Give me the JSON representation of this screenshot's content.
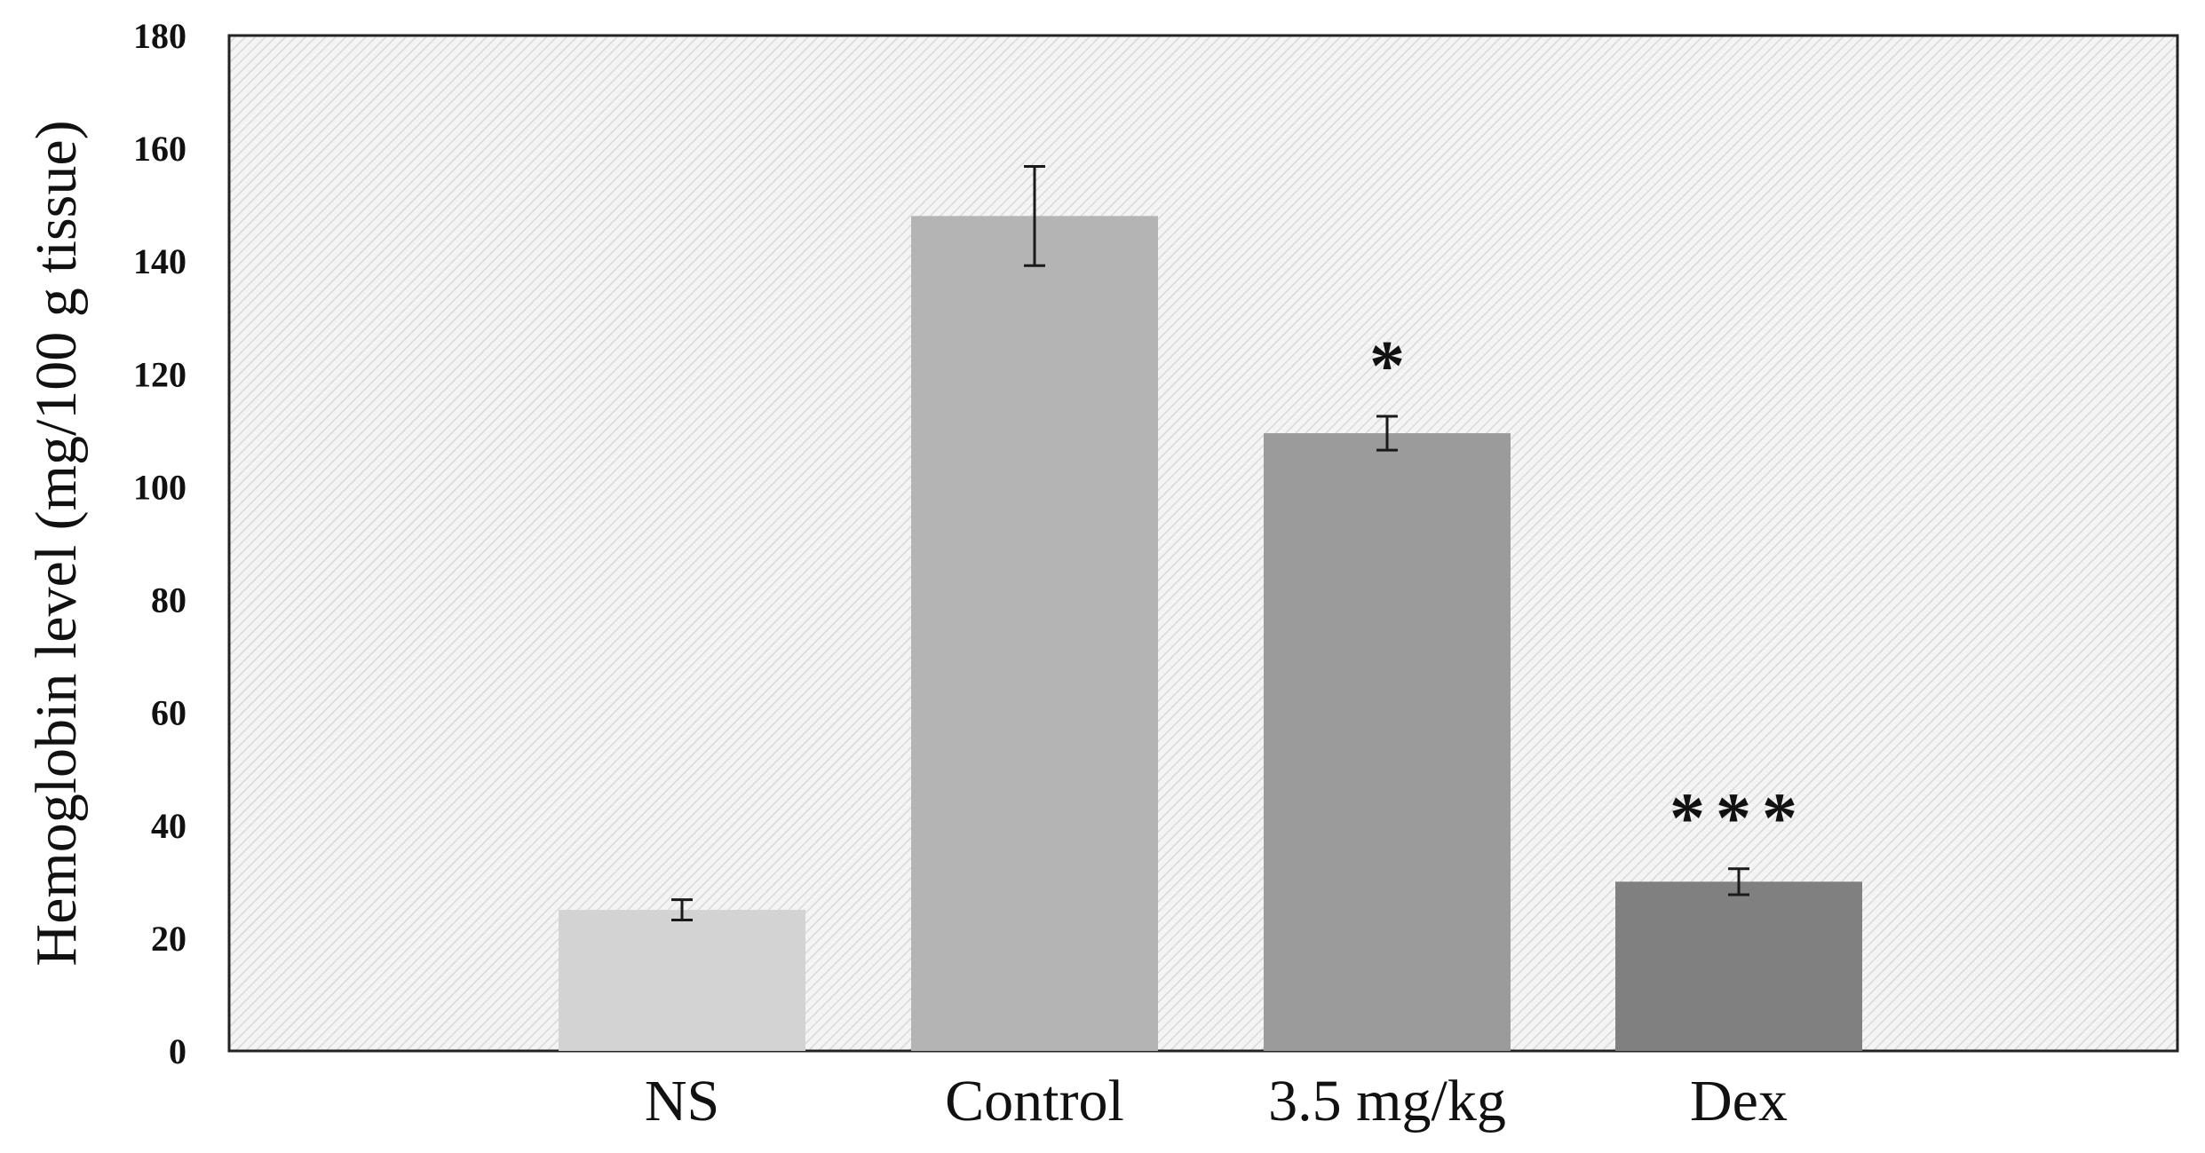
{
  "chart_data": {
    "type": "bar",
    "title": "",
    "xlabel": "",
    "ylabel": "Hemoglobin level (mg/100 g tissue)",
    "ylim": [
      0,
      180
    ],
    "yticks": [
      0,
      20,
      40,
      60,
      80,
      100,
      120,
      140,
      160,
      180
    ],
    "grid": false,
    "legend": "none",
    "categories": [
      "NS",
      "Control",
      "3.5 mg/kg",
      "Dex"
    ],
    "values": [
      25,
      148,
      109.5,
      30
    ],
    "errors": [
      1.8,
      8.8,
      3,
      2.3
    ],
    "annotations": [
      "",
      "",
      "*",
      "***"
    ],
    "colors": [
      "#d3d3d3",
      "#b4b4b4",
      "#9b9b9b",
      "#808080"
    ],
    "plot_background": "hatched-light-gray"
  }
}
